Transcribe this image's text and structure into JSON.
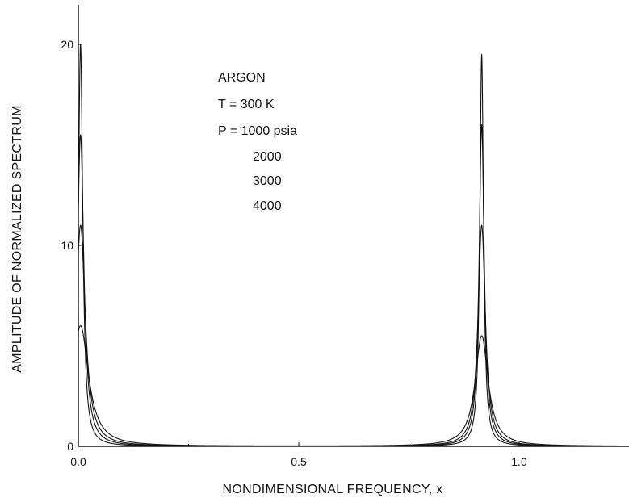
{
  "chart_data": {
    "type": "line",
    "title": "",
    "xlabel": "NONDIMENSIONAL FREQUENCY, x",
    "ylabel": "AMPLITUDE OF NORMALIZED SPECTRUM",
    "xlim": [
      0.0,
      1.26
    ],
    "ylim": [
      0,
      22
    ],
    "x_ticks": [
      0.0,
      0.5,
      1.0
    ],
    "x_tick_labels": [
      "0.0",
      "0.5",
      "1.0"
    ],
    "y_ticks": [
      0,
      10,
      20
    ],
    "y_tick_labels": [
      "0",
      "10",
      "20"
    ],
    "grid": false,
    "legend": "none",
    "annotation": {
      "lines": [
        "ARGON",
        "T = 300 K",
        "P = 1000 psia",
        "2000",
        "3000",
        "4000"
      ]
    },
    "series": [
      {
        "peaks": [
          {
            "x": 0.005,
            "height": 20.0,
            "width": 0.006
          },
          {
            "x": 0.915,
            "height": 19.5,
            "width": 0.005
          }
        ]
      },
      {
        "peaks": [
          {
            "x": 0.005,
            "height": 15.5,
            "width": 0.009
          },
          {
            "x": 0.915,
            "height": 16.0,
            "width": 0.007
          }
        ]
      },
      {
        "peaks": [
          {
            "x": 0.005,
            "height": 11.0,
            "width": 0.013
          },
          {
            "x": 0.915,
            "height": 11.0,
            "width": 0.01
          }
        ]
      },
      {
        "peaks": [
          {
            "x": 0.005,
            "height": 6.0,
            "width": 0.022
          },
          {
            "x": 0.915,
            "height": 5.5,
            "width": 0.018
          }
        ]
      }
    ]
  }
}
